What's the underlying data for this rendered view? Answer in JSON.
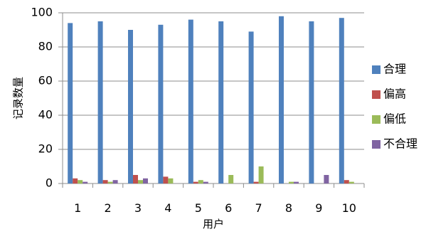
{
  "chart_data": {
    "type": "bar",
    "title": "",
    "xlabel": "用户",
    "ylabel": "记录数量",
    "categories": [
      "1",
      "2",
      "3",
      "4",
      "5",
      "6",
      "7",
      "8",
      "9",
      "10"
    ],
    "ylim": [
      0,
      100
    ],
    "yticks": [
      0,
      20,
      40,
      60,
      80,
      100
    ],
    "grid": "horizontal",
    "legend_position": "right",
    "series": [
      {
        "name": "合理",
        "color": "#4F81BD",
        "values": [
          94,
          95,
          90,
          93,
          96,
          95,
          89,
          98,
          95,
          97
        ]
      },
      {
        "name": "偏高",
        "color": "#C0504D",
        "values": [
          3,
          2,
          5,
          4,
          1,
          0,
          1,
          0,
          0,
          2
        ]
      },
      {
        "name": "偏低",
        "color": "#9BBB59",
        "values": [
          2,
          1,
          2,
          3,
          2,
          5,
          10,
          1,
          0,
          1
        ]
      },
      {
        "name": "不合理",
        "color": "#8064A2",
        "values": [
          1,
          2,
          3,
          0,
          1,
          0,
          0,
          1,
          5,
          0
        ]
      }
    ]
  }
}
